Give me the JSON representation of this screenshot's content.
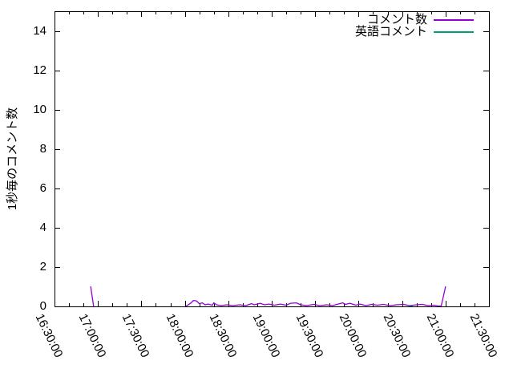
{
  "page": {
    "background": "#ffffff",
    "text_color": "#000000"
  },
  "chart_data": {
    "type": "line",
    "title": "",
    "xlabel": "",
    "ylabel": "1秒毎のコメント数",
    "ylim": [
      0,
      15
    ],
    "y_ticks": [
      0,
      2,
      4,
      6,
      8,
      10,
      12,
      14
    ],
    "x_range": [
      "16:30:00",
      "21:30:00"
    ],
    "x_tick_labels": [
      "16:30:00",
      "17:00:00",
      "17:30:00",
      "18:00:00",
      "18:30:00",
      "19:00:00",
      "19:30:00",
      "20:00:00",
      "20:30:00",
      "21:00:00",
      "21:30:00"
    ],
    "x_major_step_min": 30,
    "x_minor_step_min": 10,
    "grid": false,
    "legend_position": "top-right-inside",
    "series": [
      {
        "name": "コメント数",
        "color": "#9400d3",
        "segments": [
          [
            [
              "16:55",
              1.0
            ],
            [
              "16:57",
              0.0
            ]
          ],
          [
            [
              "18:01",
              0.02
            ],
            [
              "18:04",
              0.16
            ],
            [
              "18:06",
              0.3
            ],
            [
              "18:08",
              0.28
            ],
            [
              "18:10",
              0.14
            ],
            [
              "18:12",
              0.18
            ],
            [
              "18:14",
              0.08
            ],
            [
              "18:16",
              0.12
            ],
            [
              "18:19",
              0.06
            ],
            [
              "18:20",
              0.18
            ],
            [
              "18:22",
              0.08
            ],
            [
              "18:25",
              0.04
            ],
            [
              "18:29",
              0.08
            ],
            [
              "18:33",
              0.04
            ],
            [
              "18:38",
              0.08
            ],
            [
              "18:42",
              0.04
            ],
            [
              "18:46",
              0.14
            ],
            [
              "18:48",
              0.08
            ],
            [
              "18:52",
              0.16
            ],
            [
              "18:55",
              0.08
            ],
            [
              "18:58",
              0.12
            ],
            [
              "19:02",
              0.06
            ],
            [
              "19:06",
              0.12
            ],
            [
              "19:10",
              0.06
            ],
            [
              "19:13",
              0.16
            ],
            [
              "19:17",
              0.18
            ],
            [
              "19:20",
              0.08
            ],
            [
              "19:24",
              0.04
            ],
            [
              "19:29",
              0.1
            ],
            [
              "19:33",
              0.04
            ],
            [
              "19:38",
              0.08
            ],
            [
              "19:42",
              0.04
            ],
            [
              "19:45",
              0.1
            ],
            [
              "19:49",
              0.18
            ],
            [
              "19:51",
              0.1
            ],
            [
              "19:54",
              0.16
            ],
            [
              "19:58",
              0.06
            ],
            [
              "20:01",
              0.12
            ],
            [
              "20:05",
              0.04
            ],
            [
              "20:09",
              0.1
            ],
            [
              "20:13",
              0.06
            ],
            [
              "20:17",
              0.1
            ],
            [
              "20:22",
              0.04
            ],
            [
              "20:26",
              0.08
            ],
            [
              "20:31",
              0.1
            ],
            [
              "20:35",
              0.04
            ],
            [
              "20:40",
              0.08
            ],
            [
              "20:44",
              0.1
            ],
            [
              "20:48",
              0.04
            ],
            [
              "20:52",
              0.06
            ],
            [
              "20:55",
              0.02
            ],
            [
              "20:57",
              0.02
            ],
            [
              "20:58",
              0.33
            ],
            [
              "21:00",
              1.0
            ]
          ]
        ]
      },
      {
        "name": "英語コメント",
        "color": "#009e73",
        "segments": [
          [
            [
              "20:35",
              0.02
            ],
            [
              "20:37",
              0.02
            ]
          ]
        ]
      }
    ]
  }
}
